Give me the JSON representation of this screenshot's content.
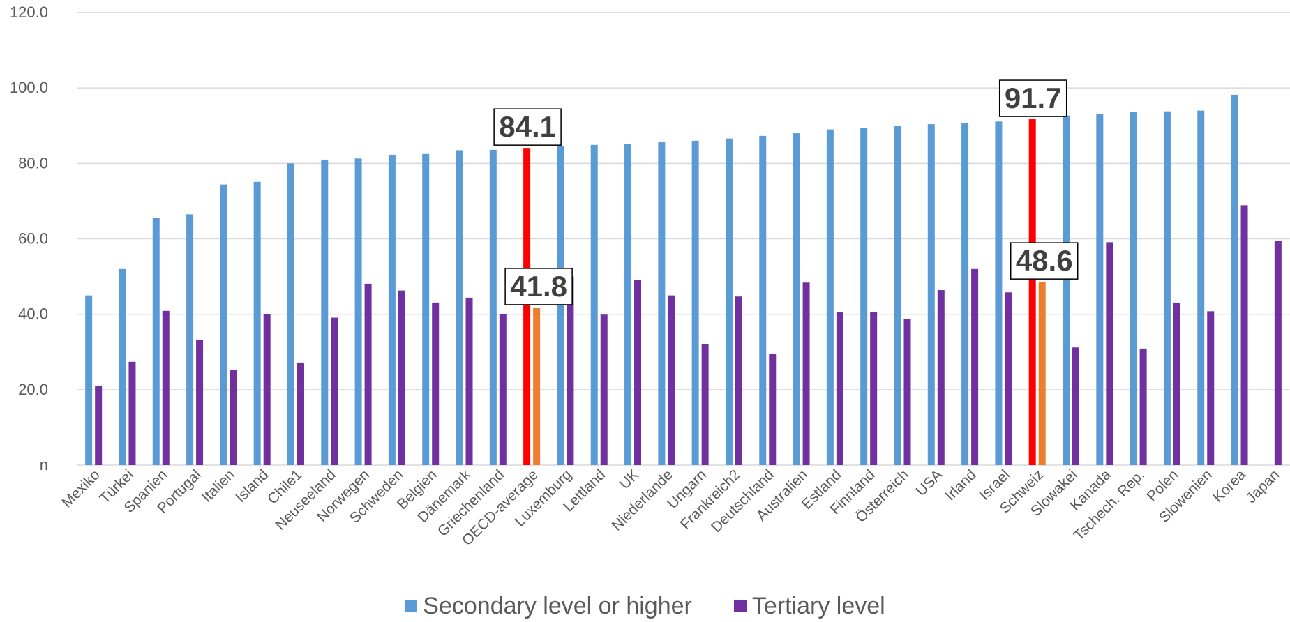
{
  "chart_data": {
    "type": "bar",
    "categories": [
      "Mexiko",
      "Türkei",
      "Spanien",
      "Portugal",
      "Italien",
      "Island",
      "Chile1",
      "Neuseeland",
      "Norwegen",
      "Schweden",
      "Belgien",
      "Dänemark",
      "Griechenland",
      "OECD-average",
      "Luxemburg",
      "Lettland",
      "UK",
      "Niederlande",
      "Ungarn",
      "Frankreich2",
      "Deutschland",
      "Australien",
      "Estland",
      "Finnland",
      "Österreich",
      "USA",
      "Irland",
      "Israel",
      "Schweiz",
      "Slowakei",
      "Kanada",
      "Tschech. Rep.",
      "Polen",
      "Slowenien",
      "Korea",
      "Japan"
    ],
    "series": [
      {
        "name": "Secondary level or higher",
        "color": "#5B9BD5",
        "values": [
          45.0,
          52.0,
          65.5,
          66.5,
          74.4,
          75.1,
          80.0,
          81.0,
          81.3,
          82.2,
          82.5,
          83.5,
          83.6,
          84.1,
          84.5,
          84.9,
          85.2,
          85.6,
          86.0,
          86.6,
          87.3,
          88.0,
          89.0,
          89.4,
          89.9,
          90.4,
          90.7,
          91.1,
          91.7,
          92.7,
          93.2,
          93.6,
          93.8,
          94.0,
          98.2,
          null
        ]
      },
      {
        "name": "Tertiary level",
        "color": "#7030A0",
        "values": [
          21.0,
          27.4,
          40.9,
          33.1,
          25.2,
          40.0,
          27.2,
          39.1,
          48.1,
          46.3,
          43.1,
          44.4,
          40.0,
          41.8,
          50.0,
          39.9,
          49.1,
          45.0,
          32.1,
          44.7,
          29.5,
          48.4,
          40.6,
          40.6,
          38.7,
          46.4,
          52.0,
          45.8,
          48.6,
          31.2,
          59.1,
          30.9,
          43.1,
          40.8,
          68.9,
          59.5
        ]
      }
    ],
    "highlight": {
      "categories": [
        "OECD-average",
        "Schweiz"
      ],
      "secondary_color": "#FF0000",
      "tertiary_color": "#ED7D31"
    },
    "callouts": [
      {
        "category": "OECD-average",
        "series": 0,
        "label": "84.1"
      },
      {
        "category": "OECD-average",
        "series": 1,
        "label": "41.8"
      },
      {
        "category": "Schweiz",
        "series": 0,
        "label": "91.7"
      },
      {
        "category": "Schweiz",
        "series": 1,
        "label": "48.6"
      }
    ],
    "yticks": [
      "n",
      "20.0",
      "40.0",
      "60.0",
      "80.0",
      "100.0",
      "120.0"
    ],
    "ylim": [
      0,
      120
    ],
    "grid": true,
    "legend_position": "bottom"
  }
}
